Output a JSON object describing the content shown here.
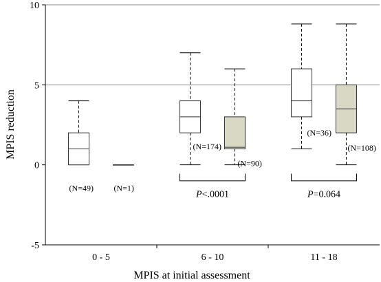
{
  "chart_data": {
    "type": "box",
    "xlabel": "MPIS at initial assessment",
    "ylabel": "MPIS reduction",
    "ylim": [
      -5,
      10
    ],
    "yticks": [
      -5,
      0,
      5,
      10
    ],
    "grid_y": [
      5,
      10
    ],
    "categories": [
      "0 - 5",
      "6 - 10",
      "11 - 18"
    ],
    "colors": {
      "group1": "#ffffff",
      "group2": "#d8d8c4",
      "stroke": "#333333"
    },
    "boxes": [
      {
        "category": 0,
        "group": 1,
        "whisker_low": 0,
        "q1": 0,
        "median": 1,
        "q3": 2,
        "whisker_high": 4,
        "n_label": "(N=49)"
      },
      {
        "category": 0,
        "group": 2,
        "whisker_low": 0,
        "q1": 0,
        "median": 0,
        "q3": 0,
        "whisker_high": 0,
        "n_label": "(N=1)"
      },
      {
        "category": 1,
        "group": 1,
        "whisker_low": 0,
        "q1": 2,
        "median": 3,
        "q3": 4,
        "whisker_high": 7,
        "n_label": "(N=174)"
      },
      {
        "category": 1,
        "group": 2,
        "whisker_low": 0,
        "q1": 1,
        "median": 1.1,
        "q3": 3,
        "whisker_high": 6,
        "n_label": "(N=90)"
      },
      {
        "category": 2,
        "group": 1,
        "whisker_low": 1,
        "q1": 3,
        "median": 4,
        "q3": 6,
        "whisker_high": 8.8,
        "n_label": "(N=36)"
      },
      {
        "category": 2,
        "group": 2,
        "whisker_low": 0,
        "q1": 2,
        "median": 3.5,
        "q3": 5,
        "whisker_high": 8.8,
        "n_label": "(N=108)"
      }
    ],
    "comparisons": [
      {
        "category": 1,
        "p_prefix": "P",
        "p_value": "<.0001"
      },
      {
        "category": 2,
        "p_prefix": "P",
        "p_value": "=0.064"
      }
    ]
  }
}
